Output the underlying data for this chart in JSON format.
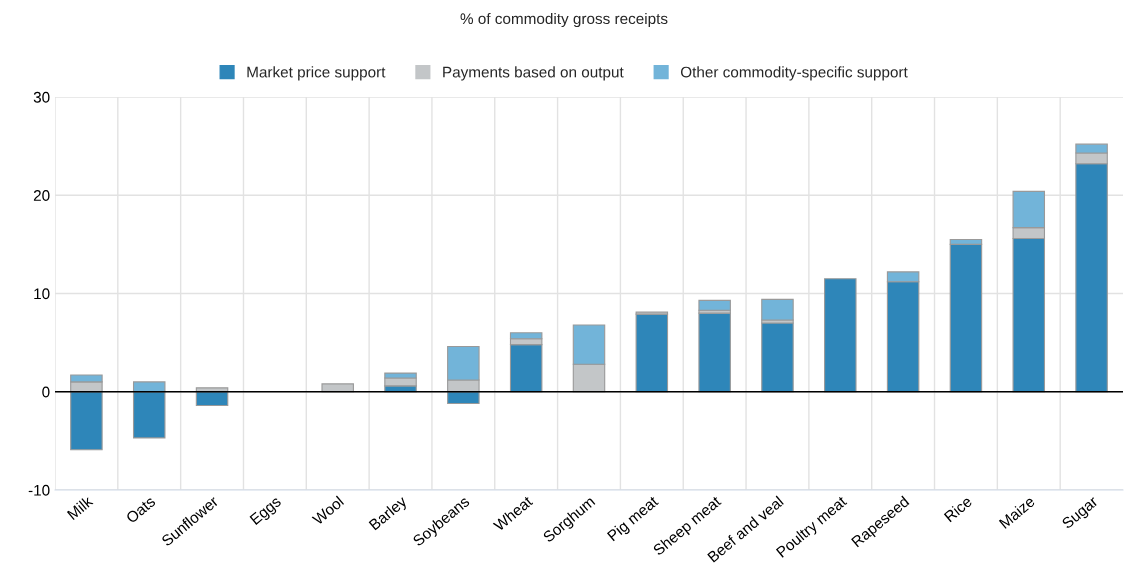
{
  "chart_data": {
    "type": "bar",
    "stacked": true,
    "title": "% of commodity gross receipts",
    "categories": [
      "Milk",
      "Oats",
      "Sunflower",
      "Eggs",
      "Wool",
      "Barley",
      "Soybeans",
      "Wheat",
      "Sorghum",
      "Pig meat",
      "Sheep meat",
      "Beef and veal",
      "Poultry meat",
      "Rapeseed",
      "Rice",
      "Maize",
      "Sugar"
    ],
    "series": [
      {
        "name": "Market price support",
        "color": "#2e86b9",
        "values": [
          -5.9,
          -4.7,
          -1.4,
          0,
          0,
          0.6,
          -1.2,
          4.8,
          0,
          7.9,
          8.0,
          7.0,
          11.5,
          11.2,
          15.0,
          15.6,
          23.2
        ]
      },
      {
        "name": "Payments based on output",
        "color": "#c3c6c8",
        "values": [
          1.0,
          0,
          0.4,
          null,
          0.8,
          0.8,
          1.2,
          0.6,
          2.8,
          0.2,
          0.3,
          0.3,
          0,
          0,
          0,
          1.1,
          1.1
        ]
      },
      {
        "name": "Other commodity-specific support",
        "color": "#72b4d9",
        "values": [
          0.7,
          1.0,
          0,
          0,
          0,
          0.5,
          3.4,
          0.6,
          4.0,
          0,
          1.0,
          2.1,
          0,
          1.0,
          0.5,
          3.7,
          0.9
        ]
      }
    ],
    "ylim": [
      -10,
      30
    ],
    "yticks": [
      -10,
      0,
      10,
      20,
      30
    ],
    "grid": true,
    "legend": "top",
    "ref_lines": [
      {
        "axis": "y",
        "value": 0,
        "color": "#000000"
      }
    ]
  }
}
